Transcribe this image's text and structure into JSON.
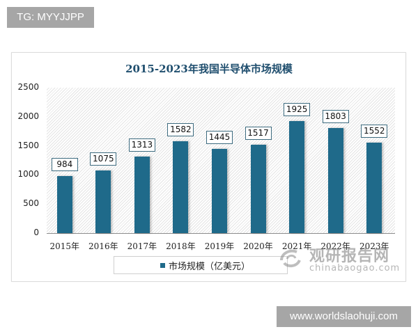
{
  "overlay": {
    "tg_label": "TG: MYYJJPP",
    "site_label": "www.worldslaohuji.com"
  },
  "watermark": {
    "cn_text": "观研报告网",
    "en_text": "chinabaogao.com",
    "icon": "swirl-logo-icon"
  },
  "colors": {
    "bar": "#1f6a8a",
    "title": "#1f4e6e",
    "label_border": "#3d6b7f",
    "badge_bg": "#a6a6a6"
  },
  "chart_data": {
    "type": "bar",
    "title": "2015-2023年我国半导体市场规模",
    "categories": [
      "2015年",
      "2016年",
      "2017年",
      "2018年",
      "2019年",
      "2020年",
      "2021年",
      "2022年",
      "2023年"
    ],
    "series": [
      {
        "name": "市场规模（亿美元）",
        "values": [
          984,
          1075,
          1313,
          1582,
          1445,
          1517,
          1925,
          1803,
          1552
        ]
      }
    ],
    "xlabel": "",
    "ylabel": "",
    "ylim": [
      0,
      2500
    ],
    "yticks": [
      0,
      500,
      1000,
      1500,
      2000,
      2500
    ],
    "yticks_labels": [
      "0",
      "500",
      "1000",
      "1500",
      "2000",
      "2500"
    ],
    "grid": false,
    "legend_position": "bottom",
    "data_labels": true
  }
}
